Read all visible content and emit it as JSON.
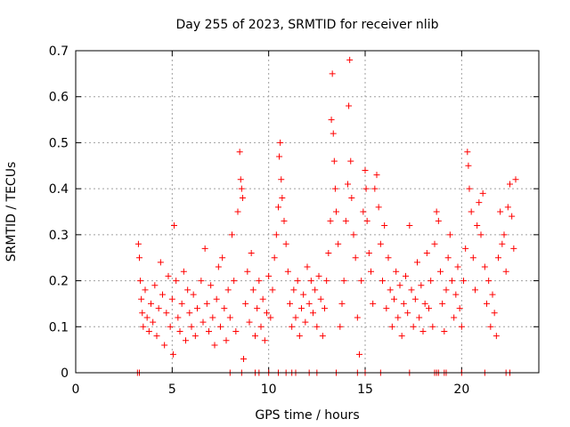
{
  "chart_data": {
    "type": "scatter",
    "title": "Day 255 of 2023, SRMTID for receiver nlib",
    "xlabel": "GPS time / hours",
    "ylabel": "SRMTID / TECUs",
    "xlim": [
      0,
      24
    ],
    "ylim": [
      0,
      0.7
    ],
    "xticks": [
      0,
      5,
      10,
      15,
      20
    ],
    "yticks": [
      0,
      0.1,
      0.2,
      0.3,
      0.4,
      0.5,
      0.6,
      0.7
    ],
    "grid": true,
    "marker": "+",
    "series_color": "#ff0000",
    "series": [
      {
        "name": "SRMTID",
        "points": [
          [
            3.25,
            0.28
          ],
          [
            3.3,
            0.25
          ],
          [
            3.35,
            0.2
          ],
          [
            3.4,
            0.16
          ],
          [
            3.45,
            0.13
          ],
          [
            3.5,
            0.1
          ],
          [
            3.6,
            0.18
          ],
          [
            3.7,
            0.12
          ],
          [
            3.8,
            0.09
          ],
          [
            3.9,
            0.15
          ],
          [
            4.0,
            0.11
          ],
          [
            4.1,
            0.19
          ],
          [
            4.2,
            0.08
          ],
          [
            4.3,
            0.14
          ],
          [
            4.4,
            0.24
          ],
          [
            4.5,
            0.17
          ],
          [
            4.6,
            0.06
          ],
          [
            4.7,
            0.13
          ],
          [
            4.8,
            0.21
          ],
          [
            4.9,
            0.1
          ],
          [
            5.0,
            0.16
          ],
          [
            5.05,
            0.04
          ],
          [
            5.1,
            0.32
          ],
          [
            5.2,
            0.2
          ],
          [
            5.3,
            0.12
          ],
          [
            5.4,
            0.09
          ],
          [
            5.5,
            0.15
          ],
          [
            5.6,
            0.22
          ],
          [
            5.7,
            0.07
          ],
          [
            5.8,
            0.18
          ],
          [
            5.9,
            0.13
          ],
          [
            6.0,
            0.1
          ],
          [
            6.1,
            0.17
          ],
          [
            6.2,
            0.08
          ],
          [
            6.3,
            0.14
          ],
          [
            6.5,
            0.2
          ],
          [
            6.6,
            0.11
          ],
          [
            6.7,
            0.27
          ],
          [
            6.8,
            0.15
          ],
          [
            6.9,
            0.09
          ],
          [
            7.0,
            0.19
          ],
          [
            7.1,
            0.12
          ],
          [
            7.2,
            0.06
          ],
          [
            7.3,
            0.16
          ],
          [
            7.4,
            0.23
          ],
          [
            7.5,
            0.1
          ],
          [
            7.6,
            0.25
          ],
          [
            7.7,
            0.14
          ],
          [
            7.8,
            0.07
          ],
          [
            7.9,
            0.18
          ],
          [
            8.0,
            0.12
          ],
          [
            8.1,
            0.3
          ],
          [
            8.2,
            0.2
          ],
          [
            8.3,
            0.09
          ],
          [
            8.4,
            0.35
          ],
          [
            8.5,
            0.48
          ],
          [
            8.55,
            0.42
          ],
          [
            8.6,
            0.4
          ],
          [
            8.65,
            0.38
          ],
          [
            8.7,
            0.03
          ],
          [
            8.8,
            0.15
          ],
          [
            8.9,
            0.22
          ],
          [
            9.0,
            0.11
          ],
          [
            9.1,
            0.26
          ],
          [
            9.2,
            0.18
          ],
          [
            9.3,
            0.08
          ],
          [
            9.4,
            0.14
          ],
          [
            9.5,
            0.2
          ],
          [
            9.6,
            0.1
          ],
          [
            9.7,
            0.16
          ],
          [
            9.8,
            0.07
          ],
          [
            9.9,
            0.13
          ],
          [
            10.0,
            0.21
          ],
          [
            10.1,
            0.12
          ],
          [
            10.2,
            0.18
          ],
          [
            10.3,
            0.25
          ],
          [
            10.4,
            0.3
          ],
          [
            10.5,
            0.36
          ],
          [
            10.55,
            0.47
          ],
          [
            10.6,
            0.5
          ],
          [
            10.65,
            0.42
          ],
          [
            10.7,
            0.38
          ],
          [
            10.8,
            0.33
          ],
          [
            10.9,
            0.28
          ],
          [
            11.0,
            0.22
          ],
          [
            11.1,
            0.15
          ],
          [
            11.2,
            0.1
          ],
          [
            11.3,
            0.18
          ],
          [
            11.4,
            0.12
          ],
          [
            11.5,
            0.2
          ],
          [
            11.6,
            0.08
          ],
          [
            11.7,
            0.14
          ],
          [
            11.8,
            0.17
          ],
          [
            11.9,
            0.11
          ],
          [
            12.0,
            0.23
          ],
          [
            12.1,
            0.15
          ],
          [
            12.2,
            0.2
          ],
          [
            12.3,
            0.13
          ],
          [
            12.4,
            0.18
          ],
          [
            12.5,
            0.1
          ],
          [
            12.6,
            0.21
          ],
          [
            12.7,
            0.16
          ],
          [
            12.8,
            0.08
          ],
          [
            12.9,
            0.14
          ],
          [
            13.0,
            0.2
          ],
          [
            13.1,
            0.26
          ],
          [
            13.2,
            0.33
          ],
          [
            13.25,
            0.55
          ],
          [
            13.3,
            0.65
          ],
          [
            13.35,
            0.52
          ],
          [
            13.4,
            0.46
          ],
          [
            13.45,
            0.4
          ],
          [
            13.5,
            0.35
          ],
          [
            13.6,
            0.28
          ],
          [
            13.7,
            0.1
          ],
          [
            13.8,
            0.15
          ],
          [
            13.9,
            0.2
          ],
          [
            14.0,
            0.33
          ],
          [
            14.1,
            0.41
          ],
          [
            14.15,
            0.58
          ],
          [
            14.2,
            0.68
          ],
          [
            14.25,
            0.46
          ],
          [
            14.3,
            0.38
          ],
          [
            14.4,
            0.3
          ],
          [
            14.5,
            0.25
          ],
          [
            14.6,
            0.12
          ],
          [
            14.7,
            0.04
          ],
          [
            14.8,
            0.2
          ],
          [
            14.9,
            0.35
          ],
          [
            15.0,
            0.44
          ],
          [
            15.05,
            0.4
          ],
          [
            15.1,
            0.33
          ],
          [
            15.2,
            0.26
          ],
          [
            15.3,
            0.22
          ],
          [
            15.4,
            0.15
          ],
          [
            15.5,
            0.4
          ],
          [
            15.6,
            0.43
          ],
          [
            15.7,
            0.36
          ],
          [
            15.8,
            0.28
          ],
          [
            15.9,
            0.2
          ],
          [
            16.0,
            0.32
          ],
          [
            16.1,
            0.14
          ],
          [
            16.2,
            0.25
          ],
          [
            16.3,
            0.18
          ],
          [
            16.4,
            0.1
          ],
          [
            16.5,
            0.16
          ],
          [
            16.6,
            0.22
          ],
          [
            16.7,
            0.12
          ],
          [
            16.8,
            0.19
          ],
          [
            16.9,
            0.08
          ],
          [
            17.0,
            0.15
          ],
          [
            17.1,
            0.21
          ],
          [
            17.2,
            0.13
          ],
          [
            17.3,
            0.32
          ],
          [
            17.4,
            0.18
          ],
          [
            17.5,
            0.1
          ],
          [
            17.6,
            0.16
          ],
          [
            17.7,
            0.24
          ],
          [
            17.8,
            0.12
          ],
          [
            17.9,
            0.19
          ],
          [
            18.0,
            0.09
          ],
          [
            18.1,
            0.15
          ],
          [
            18.2,
            0.26
          ],
          [
            18.3,
            0.14
          ],
          [
            18.4,
            0.2
          ],
          [
            18.5,
            0.1
          ],
          [
            18.6,
            0.28
          ],
          [
            18.7,
            0.35
          ],
          [
            18.8,
            0.33
          ],
          [
            18.9,
            0.22
          ],
          [
            19.0,
            0.15
          ],
          [
            19.1,
            0.09
          ],
          [
            19.2,
            0.18
          ],
          [
            19.3,
            0.25
          ],
          [
            19.4,
            0.3
          ],
          [
            19.5,
            0.2
          ],
          [
            19.6,
            0.12
          ],
          [
            19.7,
            0.17
          ],
          [
            19.8,
            0.23
          ],
          [
            19.9,
            0.14
          ],
          [
            20.0,
            0.1
          ],
          [
            20.1,
            0.2
          ],
          [
            20.2,
            0.27
          ],
          [
            20.3,
            0.48
          ],
          [
            20.35,
            0.45
          ],
          [
            20.4,
            0.4
          ],
          [
            20.5,
            0.35
          ],
          [
            20.6,
            0.25
          ],
          [
            20.7,
            0.18
          ],
          [
            20.8,
            0.32
          ],
          [
            20.9,
            0.37
          ],
          [
            21.0,
            0.3
          ],
          [
            21.1,
            0.39
          ],
          [
            21.2,
            0.23
          ],
          [
            21.3,
            0.15
          ],
          [
            21.4,
            0.2
          ],
          [
            21.5,
            0.1
          ],
          [
            21.6,
            0.17
          ],
          [
            21.7,
            0.13
          ],
          [
            21.8,
            0.08
          ],
          [
            21.9,
            0.25
          ],
          [
            22.0,
            0.35
          ],
          [
            22.1,
            0.28
          ],
          [
            22.2,
            0.3
          ],
          [
            22.3,
            0.22
          ],
          [
            22.4,
            0.36
          ],
          [
            22.5,
            0.41
          ],
          [
            22.6,
            0.34
          ],
          [
            22.7,
            0.27
          ],
          [
            22.8,
            0.42
          ]
        ]
      }
    ],
    "zero_markers": [
      3.2,
      3.3,
      8.0,
      8.6,
      9.3,
      9.5,
      10.0,
      10.5,
      10.9,
      11.2,
      11.4,
      12.1,
      12.5,
      13.5,
      14.6,
      15.0,
      15.8,
      17.3,
      18.6,
      18.7,
      18.8,
      19.1,
      19.2,
      20.0,
      21.2,
      22.3,
      22.5
    ]
  }
}
